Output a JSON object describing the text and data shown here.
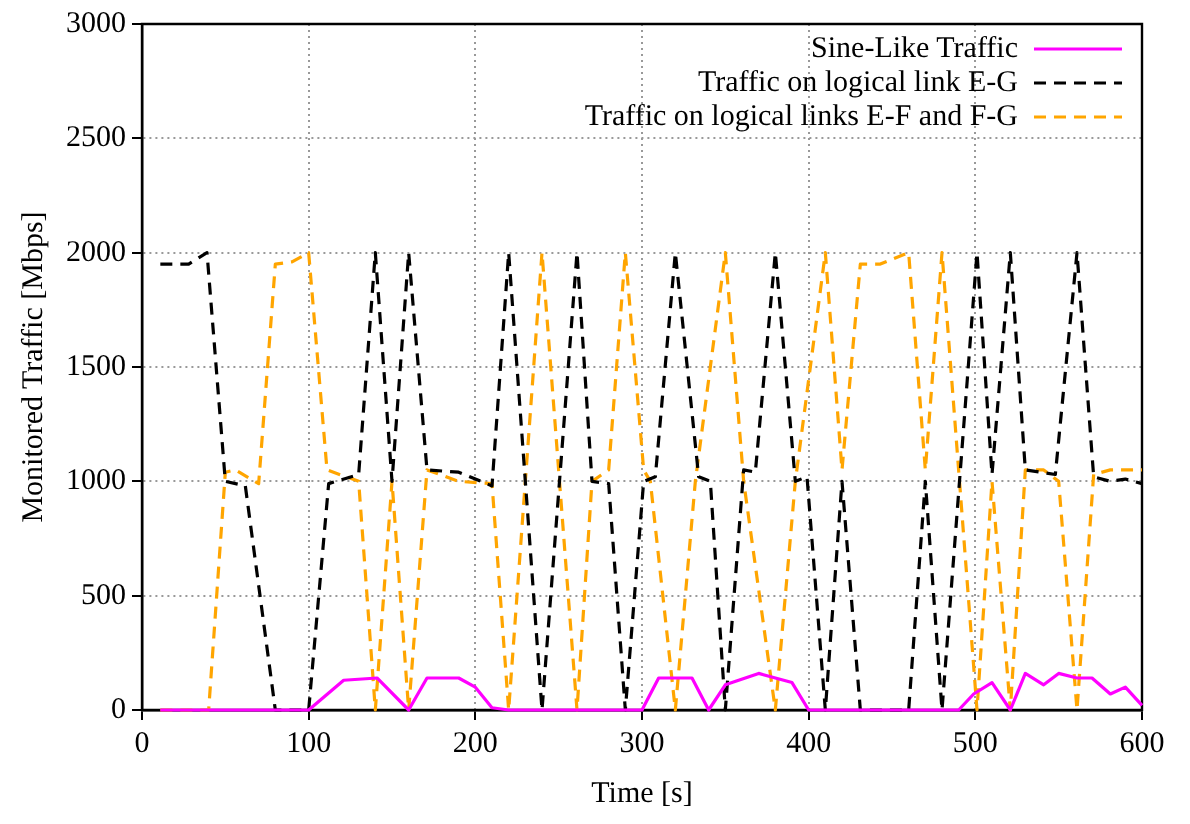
{
  "chart_data": {
    "type": "line",
    "xlabel": "Time [s]",
    "ylabel": "Monitored Traffic [Mbps]",
    "xlim": [
      0,
      600
    ],
    "xticks": [
      0,
      100,
      200,
      300,
      400,
      500,
      600
    ],
    "ylim": [
      0,
      3000
    ],
    "yticks": [
      0,
      500,
      1000,
      1500,
      2000,
      2500,
      3000
    ],
    "grid": true,
    "legend": "top right",
    "marker": "none",
    "series": [
      {
        "name": "Sine-Like Traffic",
        "color": "#ff00ff",
        "line_style": "solid",
        "x": [
          11,
          100,
          121,
          141,
          160,
          171,
          190,
          200,
          210,
          220,
          300,
          310,
          330,
          340,
          350,
          370,
          390,
          400,
          490,
          499,
          510,
          521,
          530,
          541,
          550,
          561,
          570,
          581,
          590,
          600
        ],
        "values": [
          0,
          0,
          130,
          140,
          0,
          140,
          140,
          100,
          10,
          0,
          0,
          140,
          140,
          0,
          110,
          160,
          120,
          0,
          0,
          70,
          120,
          0,
          160,
          110,
          160,
          140,
          140,
          70,
          100,
          20
        ]
      },
      {
        "name": "Traffic on logical link E-G",
        "color": "#000000",
        "line_style": "dashed",
        "x": [
          11,
          28,
          39,
          50,
          62,
          80,
          100,
          112,
          130,
          140,
          150,
          160,
          171,
          190,
          210,
          220,
          240,
          261,
          270,
          280,
          290,
          301,
          308,
          320,
          334,
          341,
          350,
          361,
          368,
          380,
          392,
          399,
          410,
          420,
          431,
          460,
          470,
          480,
          501,
          510,
          521,
          530,
          548,
          561,
          571,
          581,
          590,
          600
        ],
        "values": [
          1950,
          1950,
          2000,
          1000,
          980,
          0,
          0,
          990,
          1030,
          2000,
          1000,
          2000,
          1050,
          1040,
          980,
          2000,
          0,
          2000,
          1000,
          990,
          0,
          1000,
          1020,
          2000,
          1020,
          1000,
          0,
          1050,
          1040,
          2000,
          1000,
          1020,
          0,
          1000,
          0,
          0,
          1000,
          0,
          2000,
          1030,
          2000,
          1050,
          1030,
          2000,
          1020,
          1000,
          1010,
          990
        ]
      },
      {
        "name": "Traffic on logical links E-F and F-G",
        "color": "#ffa500",
        "line_style": "dashed",
        "x": [
          11,
          40,
          50,
          56,
          70,
          80,
          90,
          100,
          111,
          130,
          140,
          150,
          160,
          171,
          190,
          210,
          220,
          240,
          261,
          270,
          280,
          290,
          301,
          305,
          320,
          332,
          350,
          361,
          380,
          392,
          410,
          420,
          431,
          443,
          460,
          470,
          480,
          501,
          510,
          521,
          530,
          541,
          550,
          561,
          571,
          581,
          600
        ],
        "values": [
          0,
          0,
          1040,
          1050,
          990,
          1950,
          1960,
          2000,
          1050,
          1000,
          0,
          1000,
          0,
          1050,
          1000,
          990,
          0,
          2000,
          0,
          1000,
          1050,
          2000,
          1050,
          1000,
          0,
          1000,
          2000,
          1000,
          0,
          1000,
          2000,
          1050,
          1950,
          1950,
          2000,
          1050,
          2000,
          0,
          1000,
          0,
          1050,
          1050,
          1000,
          0,
          1030,
          1050,
          1050
        ]
      }
    ]
  }
}
